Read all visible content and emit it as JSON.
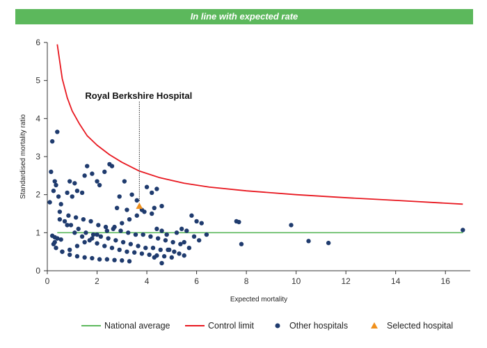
{
  "banner": {
    "text": "In line with expected rate",
    "color": "#5cb85c"
  },
  "chart_data": {
    "type": "scatter",
    "xlabel": "Expected mortality",
    "ylabel": "Standardised mortality ratio",
    "xlim": [
      0,
      17
    ],
    "ylim": [
      0,
      6
    ],
    "xticks": [
      0,
      2,
      4,
      6,
      8,
      10,
      12,
      14,
      16
    ],
    "yticks": [
      0,
      1,
      2,
      3,
      4,
      5,
      6
    ],
    "grid": false,
    "legend_position": "bottom",
    "annotation": {
      "text": "Royal Berkshire Hospital",
      "x": 3.7
    },
    "colors": {
      "national": "#5cb85c",
      "control": "#e8171f",
      "other": "#1f3b6e",
      "selected": "#f0901c"
    },
    "series": [
      {
        "name": "National average",
        "kind": "line",
        "x": [
          0.4,
          16.7
        ],
        "y": [
          1,
          1
        ]
      },
      {
        "name": "Control limit",
        "kind": "line",
        "x": [
          0.4,
          0.6,
          0.8,
          1.0,
          1.3,
          1.6,
          2.0,
          2.5,
          3.0,
          3.7,
          4.5,
          5.5,
          6.5,
          8.0,
          10.0,
          12.0,
          14.0,
          16.7
        ],
        "y": [
          5.95,
          5.05,
          4.55,
          4.2,
          3.85,
          3.55,
          3.3,
          3.05,
          2.85,
          2.62,
          2.45,
          2.3,
          2.2,
          2.1,
          2.0,
          1.92,
          1.85,
          1.75
        ]
      },
      {
        "name": "Other hospitals",
        "kind": "scatter",
        "x": [
          0.2,
          0.4,
          0.15,
          0.3,
          0.35,
          0.25,
          0.1,
          0.45,
          0.5,
          0.55,
          0.8,
          0.9,
          1.0,
          1.1,
          1.2,
          1.4,
          1.6,
          1.5,
          1.8,
          2.0,
          2.1,
          2.3,
          2.5,
          2.6,
          2.9,
          3.1,
          3.4,
          3.6,
          4.0,
          4.2,
          4.4,
          4.6,
          4.3,
          3.9,
          3.6,
          3.3,
          3.0,
          2.7,
          2.4,
          2.0,
          1.8,
          1.5,
          1.2,
          0.9,
          0.6,
          0.4,
          0.3,
          0.25,
          0.7,
          0.95,
          1.25,
          1.55,
          1.85,
          2.15,
          2.45,
          2.75,
          3.05,
          3.35,
          3.65,
          3.95,
          4.25,
          4.55,
          4.85,
          0.85,
          1.15,
          1.45,
          1.75,
          2.05,
          2.35,
          2.65,
          2.95,
          3.25,
          3.55,
          3.85,
          4.15,
          4.45,
          4.75,
          5.05,
          5.35,
          0.5,
          0.8,
          1.1,
          1.4,
          1.7,
          2.0,
          2.3,
          2.6,
          2.9,
          3.2,
          3.5,
          3.8,
          4.1,
          4.4,
          4.7,
          5.0,
          0.35,
          0.6,
          0.9,
          1.2,
          1.5,
          1.8,
          2.1,
          2.4,
          2.7,
          3.0,
          3.3,
          2.8,
          3.2,
          3.8,
          4.2,
          4.4,
          4.6,
          4.8,
          5.2,
          5.4,
          5.6,
          5.8,
          6.0,
          6.2,
          6.4,
          5.9,
          6.1,
          5.5,
          5.7,
          4.9,
          5.1,
          5.3,
          5.5,
          4.6,
          4.3,
          7.6,
          7.7,
          7.8,
          9.8,
          10.5,
          11.3,
          16.7,
          0.2,
          0.3,
          0.4,
          0.55
        ],
        "y": [
          3.4,
          3.65,
          2.6,
          2.35,
          2.25,
          2.1,
          1.8,
          1.95,
          1.55,
          1.75,
          2.05,
          2.35,
          1.95,
          2.3,
          2.1,
          2.05,
          2.75,
          2.5,
          2.55,
          2.35,
          2.25,
          2.6,
          2.8,
          2.75,
          1.95,
          2.35,
          2.0,
          1.85,
          2.2,
          2.05,
          2.15,
          1.7,
          1.65,
          1.55,
          1.45,
          1.35,
          1.25,
          1.15,
          1.05,
          0.95,
          0.85,
          0.75,
          0.65,
          0.55,
          0.5,
          0.85,
          0.75,
          0.7,
          1.3,
          1.2,
          1.1,
          1.0,
          0.95,
          0.9,
          0.85,
          0.8,
          0.75,
          0.7,
          0.65,
          0.6,
          0.6,
          0.55,
          0.55,
          1.45,
          1.4,
          1.35,
          1.3,
          1.2,
          1.15,
          1.1,
          1.05,
          1.0,
          0.95,
          0.95,
          0.9,
          0.85,
          0.8,
          0.75,
          0.7,
          1.35,
          1.2,
          1.0,
          0.9,
          0.8,
          0.72,
          0.65,
          0.6,
          0.55,
          0.5,
          0.48,
          0.45,
          0.42,
          0.4,
          0.38,
          0.35,
          0.6,
          0.5,
          0.42,
          0.38,
          0.35,
          0.33,
          0.3,
          0.3,
          0.28,
          0.27,
          0.25,
          1.65,
          1.6,
          1.6,
          1.5,
          1.1,
          1.05,
          0.95,
          1.0,
          1.1,
          1.05,
          1.45,
          1.3,
          1.25,
          0.95,
          0.9,
          0.8,
          0.75,
          0.6,
          0.55,
          0.5,
          0.45,
          0.4,
          0.2,
          0.35,
          1.3,
          1.28,
          0.7,
          1.2,
          0.78,
          0.73,
          1.07,
          0.92,
          0.88,
          0.85,
          0.82
        ]
      },
      {
        "name": "Selected hospital",
        "kind": "scatter",
        "x": [
          3.7
        ],
        "y": [
          1.7
        ]
      }
    ]
  }
}
